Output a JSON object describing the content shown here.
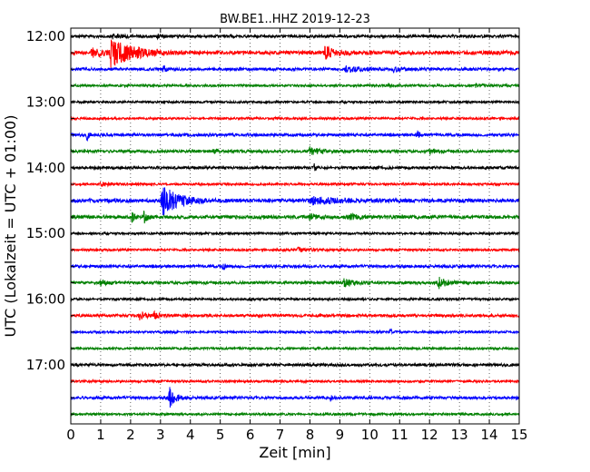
{
  "chart_data": {
    "type": "line",
    "title": "BW.BE1..HHZ 2019-12-23",
    "xlabel": "Zeit  [min]",
    "ylabel": "UTC (Lokalzeit = UTC + 01:00)",
    "xlim": [
      0,
      15
    ],
    "x_ticks": [
      "0",
      "1",
      "2",
      "3",
      "4",
      "5",
      "6",
      "7",
      "8",
      "9",
      "10",
      "11",
      "12",
      "13",
      "14",
      "15"
    ],
    "y_ticks": [
      "12:00",
      "13:00",
      "14:00",
      "15:00",
      "16:00",
      "17:00"
    ],
    "grid": "vertical dotted",
    "colors": [
      "#000000",
      "#ff0000",
      "#0000ff",
      "#008000"
    ],
    "series": [
      {
        "start": "12:00",
        "color": "#000000",
        "noise": 1.5,
        "events": [
          {
            "t": 1.4,
            "amp": 2.5,
            "dur": 0.3
          },
          {
            "t": 2.9,
            "amp": 2,
            "dur": 0.2
          }
        ]
      },
      {
        "start": "12:15",
        "color": "#ff0000",
        "noise": 2,
        "events": [
          {
            "t": 1.35,
            "amp": 16,
            "dur": 0.6
          },
          {
            "t": 0.7,
            "amp": 4,
            "dur": 0.6
          },
          {
            "t": 2.2,
            "amp": 3,
            "dur": 0.1
          },
          {
            "t": 8.5,
            "amp": 7,
            "dur": 0.3
          }
        ]
      },
      {
        "start": "12:30",
        "color": "#0000ff",
        "noise": 1.5,
        "events": [
          {
            "t": 3.1,
            "amp": 4,
            "dur": 0.1
          },
          {
            "t": 9.2,
            "amp": 3,
            "dur": 0.5
          },
          {
            "t": 10.8,
            "amp": 2.5,
            "dur": 0.3
          }
        ]
      },
      {
        "start": "12:45",
        "color": "#008000",
        "noise": 1.2,
        "events": [
          {
            "t": 10.6,
            "amp": 3,
            "dur": 0.1
          },
          {
            "t": 13.5,
            "amp": 2,
            "dur": 0.2
          }
        ]
      },
      {
        "start": "13:00",
        "color": "#000000",
        "noise": 1.2,
        "events": []
      },
      {
        "start": "13:15",
        "color": "#ff0000",
        "noise": 1.2,
        "events": []
      },
      {
        "start": "13:30",
        "color": "#0000ff",
        "noise": 1.5,
        "events": [
          {
            "t": 0.55,
            "amp": 6,
            "dur": 0.05
          },
          {
            "t": 11.6,
            "amp": 5,
            "dur": 0.08
          }
        ]
      },
      {
        "start": "13:45",
        "color": "#008000",
        "noise": 1.5,
        "events": [
          {
            "t": 4.8,
            "amp": 3,
            "dur": 0.1
          },
          {
            "t": 8.0,
            "amp": 4,
            "dur": 0.4
          },
          {
            "t": 12.0,
            "amp": 2,
            "dur": 0.2
          }
        ]
      },
      {
        "start": "14:00",
        "color": "#000000",
        "noise": 1.5,
        "events": [
          {
            "t": 8.15,
            "amp": 4,
            "dur": 0.05
          }
        ]
      },
      {
        "start": "14:15",
        "color": "#ff0000",
        "noise": 1.2,
        "events": [
          {
            "t": 1.0,
            "amp": 2,
            "dur": 0.4
          }
        ]
      },
      {
        "start": "14:30",
        "color": "#0000ff",
        "noise": 2,
        "events": [
          {
            "t": 3.05,
            "amp": 17,
            "dur": 0.5
          },
          {
            "t": 8.0,
            "amp": 4,
            "dur": 0.8
          },
          {
            "t": 10.3,
            "amp": 3,
            "dur": 0.05
          },
          {
            "t": 13.1,
            "amp": 3,
            "dur": 0.05
          }
        ]
      },
      {
        "start": "14:45",
        "color": "#008000",
        "noise": 1.8,
        "events": [
          {
            "t": 2.05,
            "amp": 5,
            "dur": 0.1
          },
          {
            "t": 2.45,
            "amp": 6,
            "dur": 0.1
          },
          {
            "t": 8.0,
            "amp": 3,
            "dur": 0.3
          },
          {
            "t": 9.3,
            "amp": 3,
            "dur": 0.3
          }
        ]
      },
      {
        "start": "15:00",
        "color": "#000000",
        "noise": 1.2,
        "events": []
      },
      {
        "start": "15:15",
        "color": "#ff0000",
        "noise": 1.2,
        "events": [
          {
            "t": 7.6,
            "amp": 2,
            "dur": 0.3
          }
        ]
      },
      {
        "start": "15:30",
        "color": "#0000ff",
        "noise": 1.5,
        "events": [
          {
            "t": 5.1,
            "amp": 4,
            "dur": 0.05
          }
        ]
      },
      {
        "start": "15:45",
        "color": "#008000",
        "noise": 1.5,
        "events": [
          {
            "t": 1.0,
            "amp": 4,
            "dur": 0.15
          },
          {
            "t": 9.15,
            "amp": 5,
            "dur": 0.3
          },
          {
            "t": 12.3,
            "amp": 6,
            "dur": 0.3
          }
        ]
      },
      {
        "start": "16:00",
        "color": "#000000",
        "noise": 1.2,
        "events": []
      },
      {
        "start": "16:15",
        "color": "#ff0000",
        "noise": 1.5,
        "events": [
          {
            "t": 2.3,
            "amp": 5,
            "dur": 0.2
          },
          {
            "t": 2.8,
            "amp": 4,
            "dur": 0.15
          }
        ]
      },
      {
        "start": "16:30",
        "color": "#0000ff",
        "noise": 1.2,
        "events": [
          {
            "t": 10.7,
            "amp": 3,
            "dur": 0.05
          }
        ]
      },
      {
        "start": "16:45",
        "color": "#008000",
        "noise": 1.2,
        "events": []
      },
      {
        "start": "17:00",
        "color": "#000000",
        "noise": 1.5,
        "events": []
      },
      {
        "start": "17:15",
        "color": "#ff0000",
        "noise": 1.2,
        "events": []
      },
      {
        "start": "17:30",
        "color": "#0000ff",
        "noise": 1.5,
        "events": [
          {
            "t": 3.3,
            "amp": 11,
            "dur": 0.2
          },
          {
            "t": 8.7,
            "amp": 4,
            "dur": 0.05
          }
        ]
      },
      {
        "start": "17:45",
        "color": "#008000",
        "noise": 1.2,
        "events": []
      }
    ]
  }
}
